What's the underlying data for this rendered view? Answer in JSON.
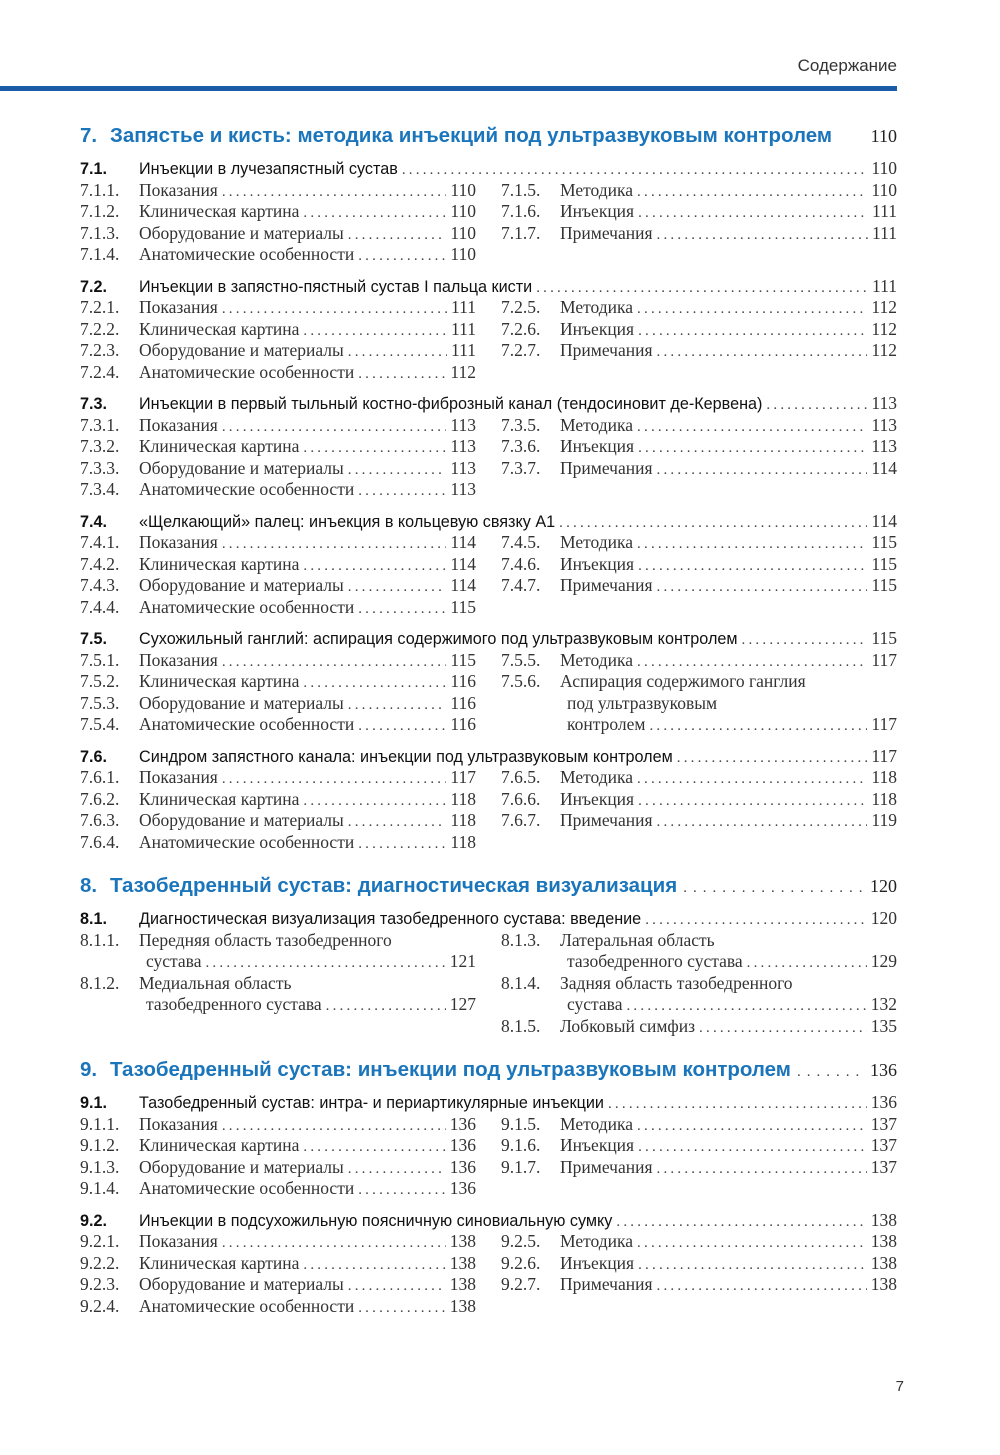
{
  "colors": {
    "accent": "#1b75bb",
    "rule": "#1a5ca8"
  },
  "running_head": "Содержание",
  "page_number": "7",
  "chapters": [
    {
      "num": "7.",
      "title": "Запястье и кисть: методика инъекций под ультразвуковым контролем",
      "page": "110",
      "leader": false,
      "sections": [
        {
          "num": "7.1.",
          "title": "Инъекции в лучезапястный сустав",
          "page": "110",
          "left": [
            {
              "num": "7.1.1.",
              "lines": [
                "Показания"
              ],
              "page": "110"
            },
            {
              "num": "7.1.2.",
              "lines": [
                "Клиническая картина"
              ],
              "page": "110"
            },
            {
              "num": "7.1.3.",
              "lines": [
                "Оборудование и материалы"
              ],
              "page": "110"
            },
            {
              "num": "7.1.4.",
              "lines": [
                "Анатомические особенности"
              ],
              "page": "110"
            }
          ],
          "right": [
            {
              "num": "7.1.5.",
              "lines": [
                "Методика"
              ],
              "page": "110"
            },
            {
              "num": "7.1.6.",
              "lines": [
                "Инъекция"
              ],
              "page": "111"
            },
            {
              "num": "7.1.7.",
              "lines": [
                "Примечания"
              ],
              "page": "111"
            }
          ]
        },
        {
          "num": "7.2.",
          "title": "Инъекции в запястно-пястный сустав I пальца кисти",
          "page": "111",
          "left": [
            {
              "num": "7.2.1.",
              "lines": [
                "Показания"
              ],
              "page": "111"
            },
            {
              "num": "7.2.2.",
              "lines": [
                "Клиническая картина"
              ],
              "page": "111"
            },
            {
              "num": "7.2.3.",
              "lines": [
                "Оборудование и материалы"
              ],
              "page": "111"
            },
            {
              "num": "7.2.4.",
              "lines": [
                "Анатомические особенности"
              ],
              "page": "112"
            }
          ],
          "right": [
            {
              "num": "7.2.5.",
              "lines": [
                "Методика"
              ],
              "page": "112"
            },
            {
              "num": "7.2.6.",
              "lines": [
                "Инъекция"
              ],
              "page": "112"
            },
            {
              "num": "7.2.7.",
              "lines": [
                "Примечания"
              ],
              "page": "112"
            }
          ]
        },
        {
          "num": "7.3.",
          "title": "Инъекции в первый тыльный костно-фиброзный канал (тендосиновит де-Кервена)",
          "page": "113",
          "left": [
            {
              "num": "7.3.1.",
              "lines": [
                "Показания"
              ],
              "page": "113"
            },
            {
              "num": "7.3.2.",
              "lines": [
                "Клиническая картина"
              ],
              "page": "113"
            },
            {
              "num": "7.3.3.",
              "lines": [
                "Оборудование и материалы"
              ],
              "page": "113"
            },
            {
              "num": "7.3.4.",
              "lines": [
                "Анатомические особенности"
              ],
              "page": "113"
            }
          ],
          "right": [
            {
              "num": "7.3.5.",
              "lines": [
                "Методика"
              ],
              "page": "113"
            },
            {
              "num": "7.3.6.",
              "lines": [
                "Инъекция"
              ],
              "page": "113"
            },
            {
              "num": "7.3.7.",
              "lines": [
                "Примечания"
              ],
              "page": "114"
            }
          ]
        },
        {
          "num": "7.4.",
          "title": "«Щелкающий» палец: инъекция в кольцевую связку А1",
          "page": "114",
          "left": [
            {
              "num": "7.4.1.",
              "lines": [
                "Показания"
              ],
              "page": "114"
            },
            {
              "num": "7.4.2.",
              "lines": [
                "Клиническая картина"
              ],
              "page": "114"
            },
            {
              "num": "7.4.3.",
              "lines": [
                "Оборудование и материалы"
              ],
              "page": "114"
            },
            {
              "num": "7.4.4.",
              "lines": [
                "Анатомические особенности"
              ],
              "page": "115"
            }
          ],
          "right": [
            {
              "num": "7.4.5.",
              "lines": [
                "Методика"
              ],
              "page": "115"
            },
            {
              "num": "7.4.6.",
              "lines": [
                "Инъекция"
              ],
              "page": "115"
            },
            {
              "num": "7.4.7.",
              "lines": [
                "Примечания"
              ],
              "page": "115"
            }
          ]
        },
        {
          "num": "7.5.",
          "title": "Сухожильный ганглий: аспирация содержимого под ультразвуковым контролем",
          "page": "115",
          "left": [
            {
              "num": "7.5.1.",
              "lines": [
                "Показания"
              ],
              "page": "115"
            },
            {
              "num": "7.5.2.",
              "lines": [
                "Клиническая картина"
              ],
              "page": "116"
            },
            {
              "num": "7.5.3.",
              "lines": [
                "Оборудование и материалы"
              ],
              "page": "116"
            },
            {
              "num": "7.5.4.",
              "lines": [
                "Анатомические особенности"
              ],
              "page": "116"
            }
          ],
          "right": [
            {
              "num": "7.5.5.",
              "lines": [
                "Методика"
              ],
              "page": "117"
            },
            {
              "num": "7.5.6.",
              "lines": [
                "Аспирация содержимого ганглия",
                "под ультразвуковым",
                "контролем"
              ],
              "page": "117"
            }
          ]
        },
        {
          "num": "7.6.",
          "title": "Синдром запястного канала: инъекции под ультразвуковым контролем",
          "page": "117",
          "left": [
            {
              "num": "7.6.1.",
              "lines": [
                "Показания"
              ],
              "page": "117"
            },
            {
              "num": "7.6.2.",
              "lines": [
                "Клиническая картина"
              ],
              "page": "118"
            },
            {
              "num": "7.6.3.",
              "lines": [
                "Оборудование и материалы"
              ],
              "page": "118"
            },
            {
              "num": "7.6.4.",
              "lines": [
                "Анатомические особенности"
              ],
              "page": "118"
            }
          ],
          "right": [
            {
              "num": "7.6.5.",
              "lines": [
                "Методика"
              ],
              "page": "118"
            },
            {
              "num": "7.6.6.",
              "lines": [
                "Инъекция"
              ],
              "page": "118"
            },
            {
              "num": "7.6.7.",
              "lines": [
                "Примечания"
              ],
              "page": "119"
            }
          ]
        }
      ]
    },
    {
      "num": "8.",
      "title": "Тазобедренный сустав: диагностическая визуализация",
      "page": "120",
      "leader": true,
      "sections": [
        {
          "num": "8.1.",
          "title": "Диагностическая визуализация тазобедренного сустава: введение",
          "page": "120",
          "left": [
            {
              "num": "8.1.1.",
              "lines": [
                "Передняя область тазобедренного",
                "сустава"
              ],
              "page": "121"
            },
            {
              "num": "8.1.2.",
              "lines": [
                "Медиальная область",
                "тазобедренного сустава"
              ],
              "page": "127"
            }
          ],
          "right": [
            {
              "num": "8.1.3.",
              "lines": [
                "Латеральная область",
                "тазобедренного сустава"
              ],
              "page": "129"
            },
            {
              "num": "8.1.4.",
              "lines": [
                "Задняя область тазобедренного",
                "сустава"
              ],
              "page": "132"
            },
            {
              "num": "8.1.5.",
              "lines": [
                "Лобковый симфиз"
              ],
              "page": "135"
            }
          ]
        }
      ]
    },
    {
      "num": "9.",
      "title": "Тазобедренный сустав: инъекции под ультразвуковым контролем",
      "page": "136",
      "leader": true,
      "sections": [
        {
          "num": "9.1.",
          "title": "Тазобедренный сустав: интра- и периартикулярные инъекции",
          "page": "136",
          "left": [
            {
              "num": "9.1.1.",
              "lines": [
                "Показания"
              ],
              "page": "136"
            },
            {
              "num": "9.1.2.",
              "lines": [
                "Клиническая картина"
              ],
              "page": "136"
            },
            {
              "num": "9.1.3.",
              "lines": [
                "Оборудование и материалы"
              ],
              "page": "136"
            },
            {
              "num": "9.1.4.",
              "lines": [
                "Анатомические особенности"
              ],
              "page": "136"
            }
          ],
          "right": [
            {
              "num": "9.1.5.",
              "lines": [
                "Методика"
              ],
              "page": "137"
            },
            {
              "num": "9.1.6.",
              "lines": [
                "Инъекция"
              ],
              "page": "137"
            },
            {
              "num": "9.1.7.",
              "lines": [
                "Примечания"
              ],
              "page": "137"
            }
          ]
        },
        {
          "num": "9.2.",
          "title": "Инъекции в подсухожильную поясничную синовиальную сумку",
          "page": "138",
          "left": [
            {
              "num": "9.2.1.",
              "lines": [
                "Показания"
              ],
              "page": "138"
            },
            {
              "num": "9.2.2.",
              "lines": [
                "Клиническая картина"
              ],
              "page": "138"
            },
            {
              "num": "9.2.3.",
              "lines": [
                "Оборудование и материалы"
              ],
              "page": "138"
            },
            {
              "num": "9.2.4.",
              "lines": [
                "Анатомические особенности"
              ],
              "page": "138"
            }
          ],
          "right": [
            {
              "num": "9.2.5.",
              "lines": [
                "Методика"
              ],
              "page": "138"
            },
            {
              "num": "9.2.6.",
              "lines": [
                "Инъекция"
              ],
              "page": "138"
            },
            {
              "num": "9.2.7.",
              "lines": [
                "Примечания"
              ],
              "page": "138"
            }
          ]
        }
      ]
    }
  ]
}
